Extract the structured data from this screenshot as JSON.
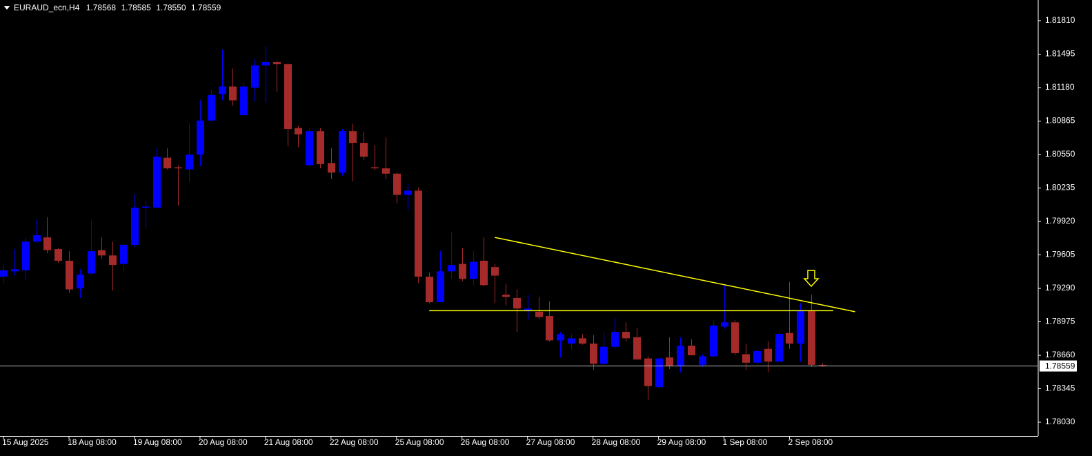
{
  "chart_data": {
    "type": "candlestick",
    "title": "EURAUD_ecn,H4",
    "ohlc_labels": [
      "1.78568",
      "1.78585",
      "1.78550",
      "1.78559"
    ],
    "categories": [
      "15 Aug 2025",
      null,
      null,
      null,
      null,
      null,
      "18 Aug 08:00",
      null,
      null,
      null,
      null,
      null,
      "19 Aug 08:00",
      null,
      null,
      null,
      null,
      null,
      "20 Aug 08:00",
      null,
      null,
      null,
      null,
      null,
      "21 Aug 08:00",
      null,
      null,
      null,
      null,
      null,
      "22 Aug 08:00",
      null,
      null,
      null,
      null,
      null,
      "25 Aug 08:00",
      null,
      null,
      null,
      null,
      null,
      "26 Aug 08:00",
      null,
      null,
      null,
      null,
      null,
      "27 Aug 08:00",
      null,
      null,
      null,
      null,
      null,
      "28 Aug 08:00",
      null,
      null,
      null,
      null,
      null,
      "29 Aug 08:00",
      null,
      null,
      null,
      null,
      null,
      "1 Sep 08:00",
      null,
      null,
      null,
      null,
      null,
      "2 Sep 08:00",
      null,
      null,
      null
    ],
    "open": [
      1.794,
      1.7945,
      1.7946,
      1.7973,
      1.7977,
      1.7966,
      1.7955,
      1.7929,
      1.7943,
      1.7965,
      1.796,
      1.7952,
      1.797,
      1.8005,
      1.8005,
      1.8052,
      1.8043,
      1.8041,
      1.8055,
      1.8087,
      1.8112,
      1.8119,
      1.8092,
      1.8118,
      1.8139,
      1.8142,
      1.814,
      1.808,
      1.8045,
      1.8077,
      1.8047,
      1.8038,
      1.8077,
      1.8066,
      1.8043,
      1.8042,
      1.8037,
      1.8017,
      1.8021,
      1.794,
      1.7916,
      1.7945,
      1.7952,
      1.7938,
      1.7955,
      1.7949,
      1.7923,
      1.792,
      1.7908,
      1.7907,
      1.7903,
      1.788,
      1.7877,
      1.7882,
      1.7877,
      1.7858,
      1.7874,
      1.7888,
      1.7883,
      1.7863,
      1.7836,
      1.7864,
      1.7856,
      1.7875,
      1.7857,
      1.7865,
      1.7893,
      1.7897,
      1.7867,
      1.7859,
      1.7872,
      1.786,
      1.7887,
      1.7877,
      1.7908,
      1.78568
    ],
    "high": [
      1.7951,
      1.7966,
      1.7977,
      1.7994,
      1.7996,
      1.7967,
      1.7964,
      1.7947,
      1.7993,
      1.7977,
      1.7973,
      1.797,
      1.8018,
      1.8011,
      1.8061,
      1.8061,
      1.8045,
      1.8084,
      1.8106,
      1.8116,
      1.8154,
      1.8136,
      1.8123,
      1.8145,
      1.8157,
      1.8143,
      1.8141,
      1.8082,
      1.808,
      1.808,
      1.8061,
      1.8079,
      1.8084,
      1.8076,
      1.8064,
      1.8071,
      1.8038,
      1.8027,
      1.8024,
      1.7944,
      1.7964,
      1.7982,
      1.7967,
      1.7964,
      1.7977,
      1.7952,
      1.7933,
      1.7928,
      1.7923,
      1.7921,
      1.7917,
      1.7888,
      1.7886,
      1.7886,
      1.7885,
      1.7887,
      1.7901,
      1.7897,
      1.7892,
      1.7865,
      1.7864,
      1.7883,
      1.7883,
      1.7881,
      1.7867,
      1.7899,
      1.7932,
      1.7899,
      1.7877,
      1.7871,
      1.7879,
      1.7888,
      1.7935,
      1.7915,
      1.7923,
      1.78585
    ],
    "low": [
      1.7934,
      1.7941,
      1.7937,
      1.7972,
      1.7962,
      1.7953,
      1.7925,
      1.792,
      1.7942,
      1.7957,
      1.7927,
      1.7945,
      1.7968,
      1.7986,
      1.8005,
      1.8041,
      1.8007,
      1.8029,
      1.8044,
      1.8086,
      1.8106,
      1.8101,
      1.8092,
      1.8105,
      1.8104,
      1.8114,
      1.8063,
      1.8062,
      1.8044,
      1.8042,
      1.8032,
      1.8035,
      1.803,
      1.805,
      1.804,
      1.8032,
      1.8009,
      1.8003,
      1.7934,
      1.7915,
      1.7916,
      1.7938,
      1.7936,
      1.7932,
      1.7931,
      1.7915,
      1.7913,
      1.7888,
      1.7899,
      1.79,
      1.7879,
      1.7864,
      1.7871,
      1.7876,
      1.7852,
      1.7857,
      1.7872,
      1.7879,
      1.7862,
      1.7824,
      1.7835,
      1.7853,
      1.785,
      1.7866,
      1.7855,
      1.7864,
      1.7891,
      1.7866,
      1.7852,
      1.7858,
      1.785,
      1.786,
      1.7872,
      1.786,
      1.7855,
      1.7855
    ],
    "close": [
      1.7946,
      1.7947,
      1.7973,
      1.7979,
      1.7965,
      1.7955,
      1.7928,
      1.7942,
      1.7964,
      1.796,
      1.7951,
      1.797,
      1.8005,
      1.8006,
      1.8053,
      1.8042,
      1.8042,
      1.8055,
      1.8087,
      1.8111,
      1.8119,
      1.8106,
      1.8119,
      1.8139,
      1.8142,
      1.814,
      1.8079,
      1.8074,
      1.8077,
      1.8046,
      1.8038,
      1.8077,
      1.8066,
      1.8053,
      1.8042,
      1.8037,
      1.8017,
      1.8021,
      1.794,
      1.7916,
      1.7945,
      1.7951,
      1.7938,
      1.7954,
      1.7932,
      1.7941,
      1.7921,
      1.791,
      1.791,
      1.7902,
      1.788,
      1.7886,
      1.7882,
      1.7877,
      1.7858,
      1.7874,
      1.7888,
      1.7882,
      1.7862,
      1.7837,
      1.7863,
      1.7856,
      1.7875,
      1.7866,
      1.7865,
      1.7894,
      1.7897,
      1.7868,
      1.7859,
      1.787,
      1.786,
      1.7886,
      1.7877,
      1.7908,
      1.7857,
      1.78559
    ],
    "up_color": "#0000ff",
    "down_color": "#a52a2a",
    "trendline_color": "#ffff00",
    "trendlines": [
      {
        "x": [
          45,
          78
        ],
        "y": [
          1.7977,
          1.7907
        ]
      },
      {
        "x": [
          39,
          76
        ],
        "y": [
          1.7908,
          1.7908
        ]
      }
    ],
    "xlim": [
      -0.32,
      94.78
    ],
    "ylim": [
      1.779,
      1.82005
    ],
    "yticks": [
      {
        "value": 1.8181,
        "label": "1.81810"
      },
      {
        "value": 1.81495,
        "label": "1.81495"
      },
      {
        "value": 1.8118,
        "label": "1.81180"
      },
      {
        "value": 1.80865,
        "label": "1.80865"
      },
      {
        "value": 1.8055,
        "label": "1.80550"
      },
      {
        "value": 1.80235,
        "label": "1.80235"
      },
      {
        "value": 1.7992,
        "label": "1.79920"
      },
      {
        "value": 1.79605,
        "label": "1.79605"
      },
      {
        "value": 1.7929,
        "label": "1.79290"
      },
      {
        "value": 1.78975,
        "label": "1.78975"
      },
      {
        "value": 1.7866,
        "label": "1.78660"
      },
      {
        "value": 1.78345,
        "label": "1.78345"
      },
      {
        "value": 1.7803,
        "label": "1.78030"
      }
    ],
    "grid": false
  }
}
